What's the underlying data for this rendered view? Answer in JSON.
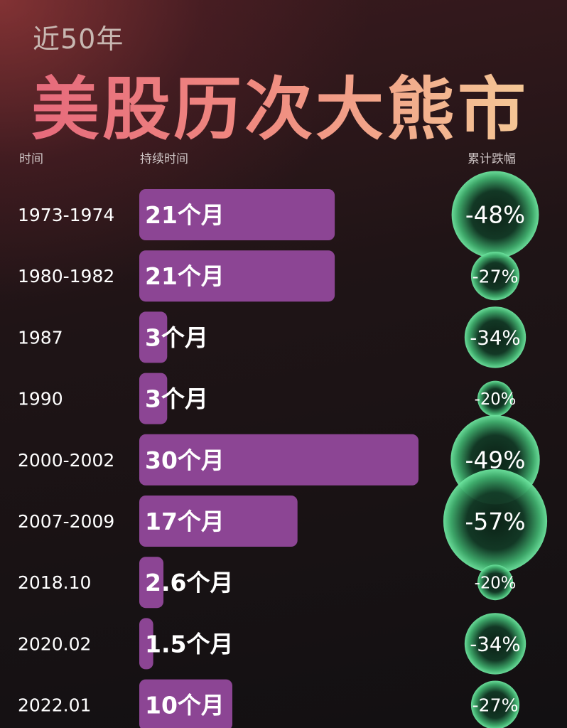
{
  "header": {
    "subtitle": "近50年",
    "title": "美股历次大熊市"
  },
  "columns": {
    "period": "时间",
    "duration": "持续时间",
    "decline": "累计跌幅"
  },
  "colors": {
    "bar": "#8c4594",
    "bubble_center": "#0b2216",
    "bubble_edge": "#5dd990",
    "text": "#ffffff"
  },
  "chart_data": {
    "type": "bar",
    "orientation": "horizontal",
    "categories": [
      "1973-1974",
      "1980-1982",
      "1987",
      "1990",
      "2000-2002",
      "2007-2009",
      "2018.10",
      "2020.02",
      "2022.01"
    ],
    "series": [
      {
        "values": [
          21,
          21,
          3,
          3,
          30,
          17,
          2.6,
          1.5,
          10
        ],
        "labels": [
          "21个月",
          "21个月",
          "3个月",
          "3个月",
          "30个月",
          "17个月",
          "2.6个月",
          "1.5个月",
          "10个月"
        ]
      },
      {
        "values": [
          -48,
          -27,
          -34,
          -20,
          -49,
          -57,
          -20,
          -34,
          -27
        ],
        "labels": [
          "-48%",
          "-27%",
          "-34%",
          "-20%",
          "-49%",
          "-57%",
          "-20%",
          "-34%",
          "-27%"
        ]
      }
    ]
  }
}
